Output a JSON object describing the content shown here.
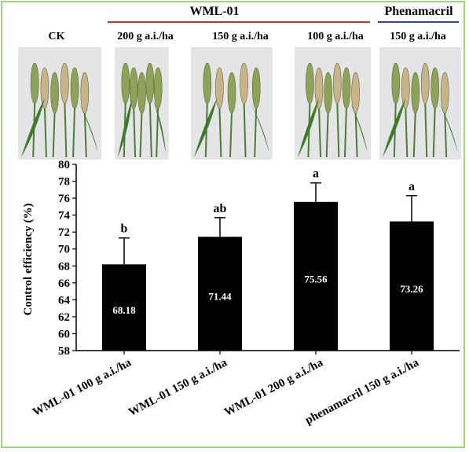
{
  "header": {
    "group_wml": "WML-01",
    "group_phen": "Phenamacril",
    "group_wml_color": "#c0392b",
    "group_phen_color": "#2f3fbf"
  },
  "photos": [
    {
      "label": "CK"
    },
    {
      "label": "200 g a.i./ha"
    },
    {
      "label": "150 g a.i./ha"
    },
    {
      "label": "100 g a.i./ha"
    },
    {
      "label": "150 g a.i./ha"
    }
  ],
  "chart_data": {
    "type": "bar",
    "ylabel": "Control efficiency (%)",
    "xlabel": "",
    "ylim": [
      58,
      80
    ],
    "yticks": [
      58,
      60,
      62,
      64,
      66,
      68,
      70,
      72,
      74,
      76,
      78,
      80
    ],
    "categories": [
      "WML-01 100 g a.i./ha",
      "WML-01 150 g a.i./ha",
      "WML-01 200 g a.i./ha",
      "phenamacril 150 g a.i./ha"
    ],
    "values": [
      68.18,
      71.44,
      75.56,
      73.26
    ],
    "value_labels": [
      "68.18",
      "71.44",
      "75.56",
      "73.26"
    ],
    "error_upper": [
      71.3,
      73.7,
      77.8,
      76.3
    ],
    "significance": [
      "b",
      "ab",
      "a",
      "a"
    ],
    "bar_color": "#000000",
    "grid": false
  }
}
